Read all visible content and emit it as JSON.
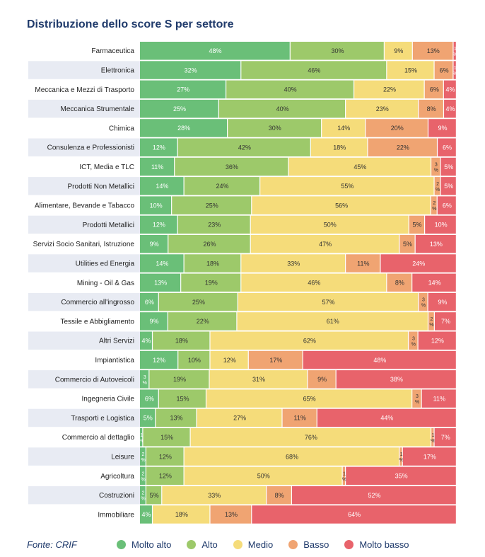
{
  "colors": {
    "molto_alto": "#6abf78",
    "alto": "#9dc96a",
    "medio": "#f5dc7a",
    "basso": "#f0a472",
    "molto_basso": "#e8636b",
    "row_band": "#e8ebf3",
    "title": "#1f3a6b"
  },
  "footer": {
    "source": "Fonte: CRIF"
  },
  "chart_data": {
    "type": "bar",
    "stacked": true,
    "orientation": "horizontal",
    "percent_stacked": true,
    "title": "Distribuzione dello score S per settore",
    "legend_position": "bottom",
    "categories": [
      "Farmaceutica",
      "Elettronica",
      "Meccanica e Mezzi di Trasporto",
      "Meccanica Strumentale",
      "Chimica",
      "Consulenza e Professionisti",
      "ICT, Media e TLC",
      "Prodotti Non Metallici",
      "Alimentare, Bevande e Tabacco",
      "Prodotti Metallici",
      "Servizi Socio Sanitari, Istruzione",
      "Utilities ed Energia",
      "Mining - Oil & Gas",
      "Commercio all'ingrosso",
      "Tessile e Abbigliamento",
      "Altri Servizi",
      "Impiantistica",
      "Commercio di Autoveicoli",
      "Ingegneria Civile",
      "Trasporti e Logistica",
      "Commercio al dettaglio",
      "Leisure",
      "Agricoltura",
      "Costruzioni",
      "Immobiliare"
    ],
    "series": [
      {
        "name": "Molto  alto",
        "color_key": "molto_alto",
        "values": [
          48,
          32,
          27,
          25,
          28,
          12,
          11,
          14,
          10,
          12,
          9,
          14,
          13,
          6,
          9,
          4,
          12,
          3,
          6,
          5,
          1,
          2,
          2,
          2,
          4
        ]
      },
      {
        "name": "Alto",
        "color_key": "alto",
        "values": [
          30,
          46,
          40,
          40,
          30,
          42,
          36,
          24,
          25,
          23,
          26,
          18,
          19,
          25,
          22,
          18,
          10,
          19,
          15,
          13,
          15,
          12,
          12,
          5,
          0
        ]
      },
      {
        "name": "Medio",
        "color_key": "medio",
        "values": [
          9,
          15,
          22,
          23,
          14,
          18,
          45,
          55,
          56,
          50,
          47,
          33,
          46,
          57,
          61,
          62,
          12,
          31,
          65,
          27,
          76,
          68,
          50,
          33,
          18
        ]
      },
      {
        "name": "Basso",
        "color_key": "basso",
        "values": [
          13,
          6,
          6,
          8,
          20,
          22,
          3,
          2,
          2,
          5,
          5,
          11,
          8,
          3,
          2,
          3,
          17,
          9,
          3,
          11,
          1,
          1,
          1,
          8,
          13
        ]
      },
      {
        "name": "Molto basso",
        "color_key": "molto_basso",
        "values": [
          1,
          1,
          4,
          4,
          9,
          6,
          5,
          5,
          6,
          10,
          13,
          24,
          14,
          9,
          7,
          12,
          48,
          38,
          11,
          44,
          7,
          17,
          35,
          52,
          64
        ]
      }
    ]
  }
}
